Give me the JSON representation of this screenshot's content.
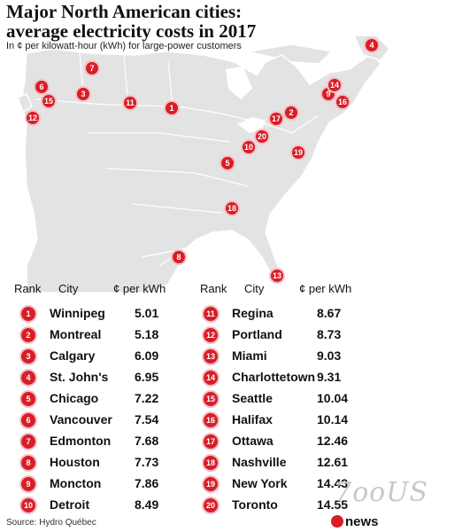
{
  "title_line1": "Major North American cities:",
  "title_line2": "average electricity costs in 2017",
  "subtitle": "In ¢ per kilowatt-hour (kWh) for large-power customers",
  "headers": {
    "rank": "Rank",
    "city": "City",
    "cost": "¢ per kWh"
  },
  "cities": [
    {
      "rank": "1",
      "name": "Winnipeg",
      "cost": "5.01"
    },
    {
      "rank": "2",
      "name": "Montreal",
      "cost": "5.18"
    },
    {
      "rank": "3",
      "name": "Calgary",
      "cost": "6.09"
    },
    {
      "rank": "4",
      "name": "St. John's",
      "cost": "6.95"
    },
    {
      "rank": "5",
      "name": "Chicago",
      "cost": "7.22"
    },
    {
      "rank": "6",
      "name": "Vancouver",
      "cost": "7.54"
    },
    {
      "rank": "7",
      "name": "Edmonton",
      "cost": "7.68"
    },
    {
      "rank": "8",
      "name": "Houston",
      "cost": "7.73"
    },
    {
      "rank": "9",
      "name": "Moncton",
      "cost": "7.86"
    },
    {
      "rank": "10",
      "name": "Detroit",
      "cost": "8.49"
    },
    {
      "rank": "11",
      "name": "Regina",
      "cost": "8.67"
    },
    {
      "rank": "12",
      "name": "Portland",
      "cost": "8.73"
    },
    {
      "rank": "13",
      "name": "Miami",
      "cost": "9.03"
    },
    {
      "rank": "14",
      "name": "Charlottetown",
      "cost": "9.31"
    },
    {
      "rank": "15",
      "name": "Seattle",
      "cost": "10.04"
    },
    {
      "rank": "16",
      "name": "Halifax",
      "cost": "10.14"
    },
    {
      "rank": "17",
      "name": "Ottawa",
      "cost": "12.46"
    },
    {
      "rank": "18",
      "name": "Nashville",
      "cost": "12.61"
    },
    {
      "rank": "19",
      "name": "New York",
      "cost": "14.43"
    },
    {
      "rank": "20",
      "name": "Toronto",
      "cost": "14.55"
    }
  ],
  "source": "Source: Hydro Québec",
  "logo": "news",
  "watermark": "7ooUS",
  "colors": {
    "marker": "#d81e28",
    "land": "#e3e3e3",
    "border": "#ffffff"
  }
}
